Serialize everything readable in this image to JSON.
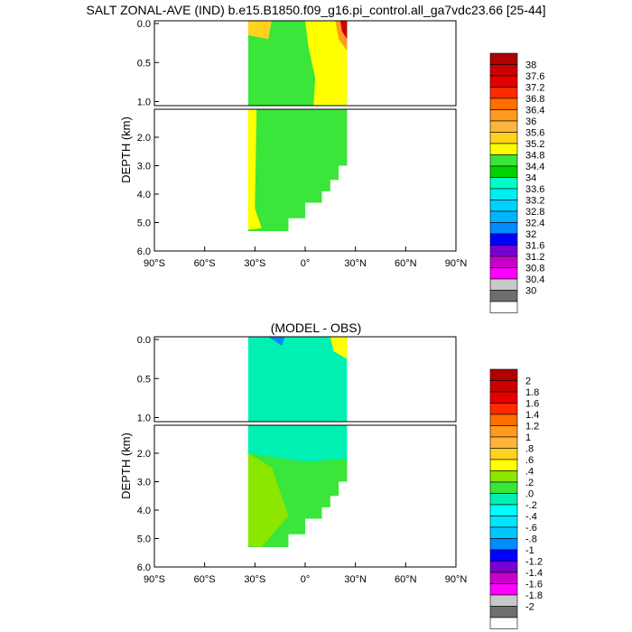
{
  "chart_data": [
    {
      "type": "heatmap",
      "title": "SALT ZONAL-AVE (IND) b.e15.B1850.f09_g16.pi_control.all_ga7vdc23.66 [25-44]",
      "subtitle": "",
      "xlabel": "",
      "ylabel": "DEPTH (km)",
      "xlim": [
        -90,
        90
      ],
      "ylim": [
        0,
        6
      ],
      "x_ticks": [
        "90°S",
        "60°S",
        "30°S",
        "0°",
        "30°N",
        "60°N",
        "90°N"
      ],
      "y_ticks_upper": [
        "0.0",
        "0.5",
        "1.0"
      ],
      "y_ticks_lower": [
        "2.0",
        "3.0",
        "4.0",
        "5.0",
        "6.0"
      ],
      "legend_levels": [
        "38",
        "37.6",
        "37.2",
        "36.8",
        "36.4",
        "36",
        "35.6",
        "35.2",
        "34.8",
        "34.4",
        "34",
        "33.6",
        "33.2",
        "32.8",
        "32.4",
        "32",
        "31.6",
        "31.2",
        "30.8",
        "30.4",
        "30"
      ],
      "legend_colors": [
        "#b00000",
        "#cc0000",
        "#e40000",
        "#ff2a00",
        "#ff6e00",
        "#ff9a1e",
        "#ffb43c",
        "#ffd21e",
        "#ffff00",
        "#39e639",
        "#00d200",
        "#00ffc8",
        "#00f0f0",
        "#00d2ff",
        "#00b4ff",
        "#008cff",
        "#0000ff",
        "#7800d2",
        "#c800c8",
        "#ff00ff",
        "#c8c8c8",
        "#6e6e6e",
        "#ffffff"
      ],
      "shading": {
        "deep": 34.4,
        "south_upper_edge": 34.8,
        "north_upper": 34.8,
        "deep_south_edge": 34.8
      }
    },
    {
      "type": "heatmap",
      "title": "(MODEL - OBS)",
      "xlabel": "",
      "ylabel": "DEPTH (km)",
      "xlim": [
        -90,
        90
      ],
      "ylim": [
        0,
        6
      ],
      "x_ticks": [
        "90°S",
        "60°S",
        "30°S",
        "0°",
        "30°N",
        "60°N",
        "90°N"
      ],
      "y_ticks_upper": [
        "0.0",
        "0.5",
        "1.0"
      ],
      "y_ticks_lower": [
        "2.0",
        "3.0",
        "4.0",
        "5.0",
        "6.0"
      ],
      "legend_levels": [
        "2",
        "1.8",
        "1.6",
        "1.4",
        "1.2",
        "1",
        ".8",
        ".6",
        ".4",
        ".2",
        ".0",
        "-.2",
        "-.4",
        "-.6",
        "-.8",
        "-1",
        "-1.2",
        "-1.4",
        "-1.6",
        "-1.8",
        "-2"
      ],
      "legend_colors": [
        "#b00000",
        "#cc0000",
        "#e40000",
        "#ff2a00",
        "#ff6e00",
        "#ff9a1e",
        "#ffb43c",
        "#ffd21e",
        "#ffff00",
        "#8ce600",
        "#39e639",
        "#00f0b4",
        "#00ffff",
        "#00e6ff",
        "#00c8ff",
        "#008cff",
        "#0000ff",
        "#7800d2",
        "#c800c8",
        "#ff00ff",
        "#c8c8c8",
        "#6e6e6e",
        "#ffffff"
      ],
      "shading": {
        "deep": 0.0,
        "upper": -0.2,
        "deep_south": 0.2
      }
    }
  ]
}
